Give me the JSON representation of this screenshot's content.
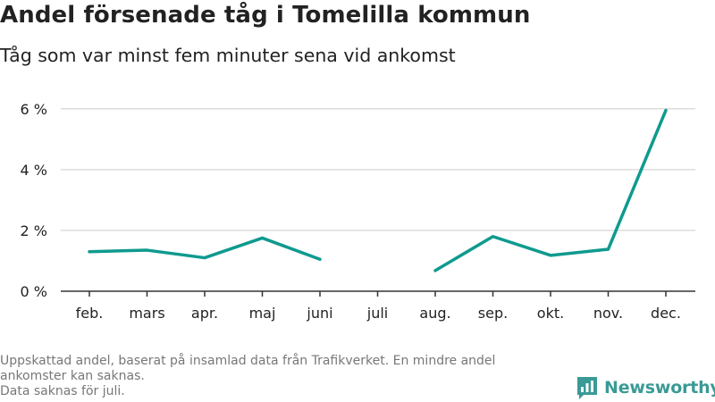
{
  "header": {
    "title": "Andel försenade tåg i Tomelilla kommun",
    "subtitle": "Tåg som var minst fem minuter sena vid ankomst"
  },
  "footer": {
    "notes": [
      "Uppskattad andel, baserat på insamlad data från Trafikverket. En mindre andel",
      "ankomster kan saknas.",
      "Data saknas för juli."
    ],
    "brand_name": "Newsworthy",
    "brand_icon": "bar-chart-logo-icon"
  },
  "colors": {
    "line": "#0f9a8f",
    "brand": "#3a9a96",
    "grid": "#dddddd",
    "axis": "#333333",
    "text": "#222222",
    "note": "#777777"
  },
  "chart_data": {
    "type": "line",
    "categories": [
      "feb.",
      "mars",
      "apr.",
      "maj",
      "juni",
      "juli",
      "aug.",
      "sep.",
      "okt.",
      "nov.",
      "dec."
    ],
    "series": [
      {
        "values": [
          1.3,
          1.35,
          1.1,
          1.75,
          1.05,
          null,
          0.68,
          1.8,
          1.18,
          1.38,
          5.95
        ]
      }
    ],
    "yticks": [
      0,
      2,
      4,
      6
    ],
    "ytick_labels": [
      "0 %",
      "2 %",
      "4 %",
      "6 %"
    ],
    "ylim": [
      0,
      6.2
    ],
    "grid": true,
    "legend": "none"
  }
}
